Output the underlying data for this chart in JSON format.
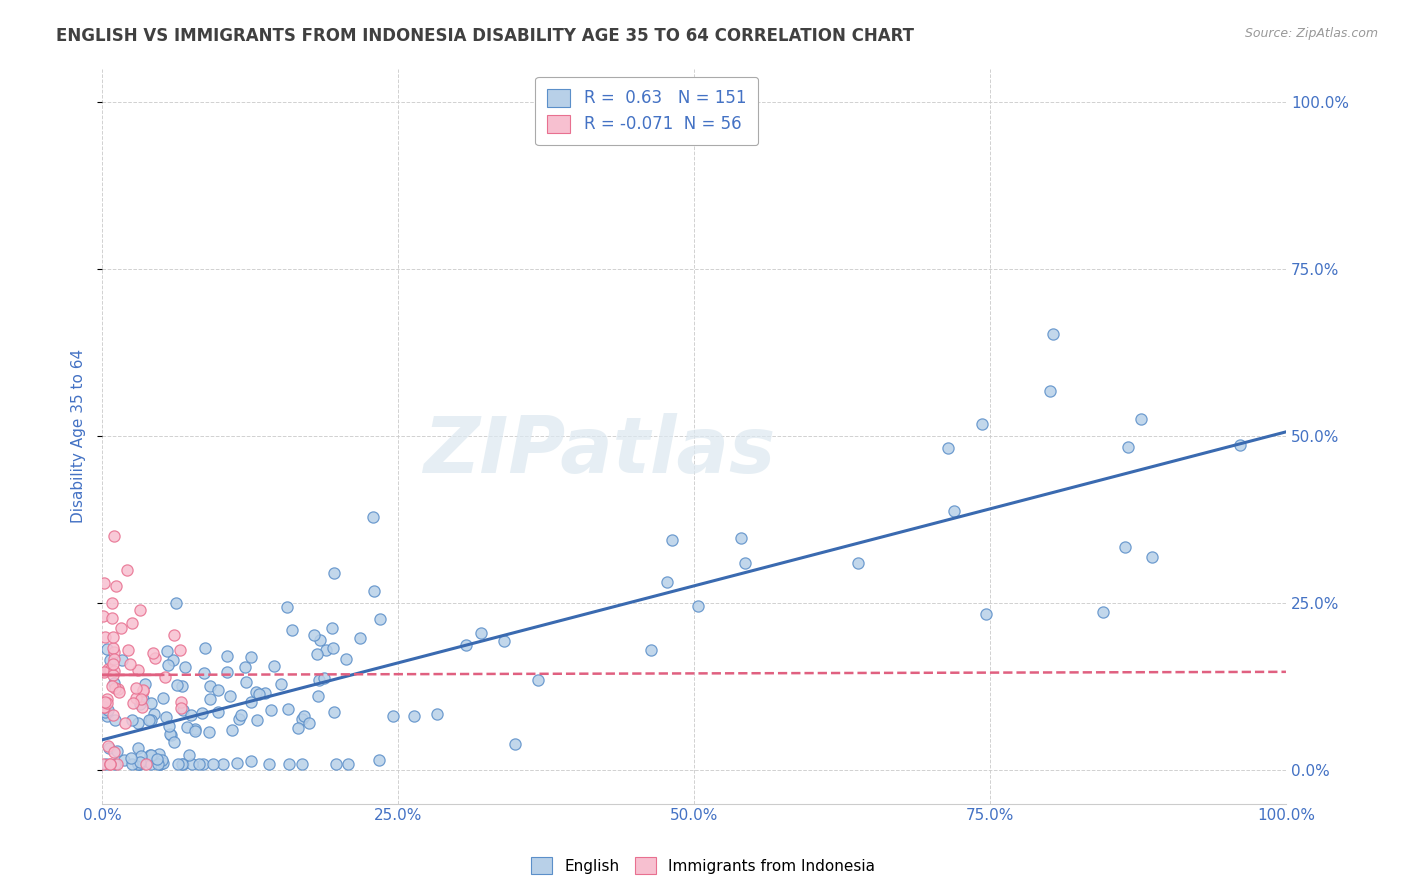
{
  "title": "ENGLISH VS IMMIGRANTS FROM INDONESIA DISABILITY AGE 35 TO 64 CORRELATION CHART",
  "source": "Source: ZipAtlas.com",
  "ylabel": "Disability Age 35 to 64",
  "watermark": "ZIPatlas",
  "english_R": 0.63,
  "english_N": 151,
  "indonesia_R": -0.071,
  "indonesia_N": 56,
  "legend_english": "English",
  "legend_indonesia": "Immigrants from Indonesia",
  "english_scatter_color": "#b8d0e8",
  "english_edge_color": "#5b8fc9",
  "english_line_color": "#3a6ab0",
  "indonesia_scatter_color": "#f7c0d0",
  "indonesia_edge_color": "#e87090",
  "indonesia_line_color": "#e06080",
  "annotation_color": "#4472c4",
  "background_color": "#ffffff",
  "grid_color": "#cccccc",
  "title_color": "#404040",
  "axis_tick_color": "#4472c4",
  "xmin": 0.0,
  "xmax": 1.0,
  "ymin": -0.05,
  "ymax": 1.05,
  "ytick_min": 0.0,
  "ytick_max": 1.0,
  "watermark_color": "#dce8f0",
  "right_yaxis_color": "#4472c4"
}
